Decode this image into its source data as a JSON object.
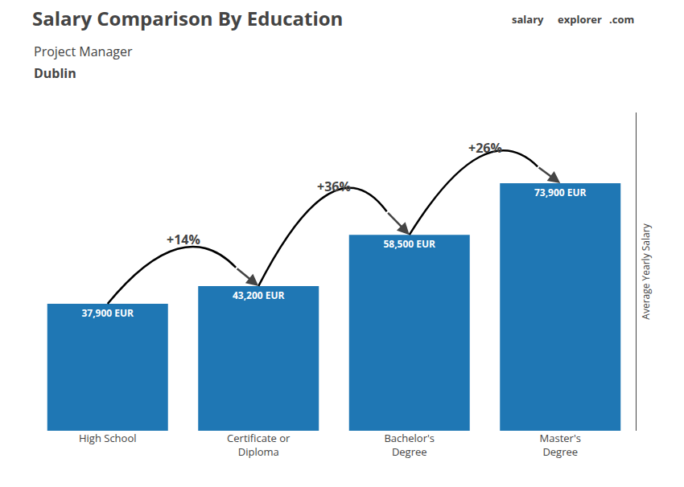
{
  "chart_data": {
    "type": "bar",
    "title": "Salary Comparison By Education",
    "subtitle": [
      "Project Manager",
      "Dublin"
    ],
    "ylabel": "Average Yearly Salary",
    "categories": [
      "High School",
      "Certificate or\nDiploma",
      "Bachelor's\nDegree",
      "Master's\nDegree"
    ],
    "values": [
      37900,
      43200,
      58500,
      73900
    ],
    "value_labels": [
      "37,900 EUR",
      "43,200 EUR",
      "58,500 EUR",
      "73,900 EUR"
    ],
    "data_labels": true,
    "ylim": [
      0,
      95000
    ],
    "grid": false,
    "tick_labels": "x",
    "annotations": [
      {
        "text": "+14%",
        "from": 0,
        "to": 1
      },
      {
        "text": "+36%",
        "from": 1,
        "to": 2
      },
      {
        "text": "+26%",
        "from": 2,
        "to": 3
      },
      {
        "text": "salary"
      },
      {
        "text": "explorer"
      },
      {
        "text": ".com"
      }
    ]
  }
}
